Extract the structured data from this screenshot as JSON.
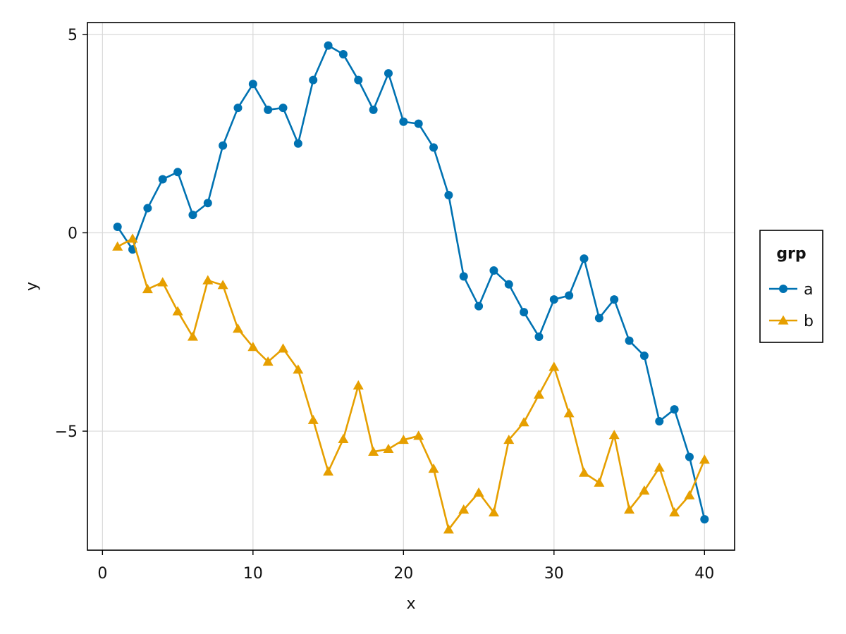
{
  "chart_data": {
    "type": "line",
    "xlabel": "x",
    "ylabel": "y",
    "xlim": [
      -1,
      42
    ],
    "ylim": [
      -8.0,
      5.3
    ],
    "xticks": [
      0,
      10,
      20,
      30,
      40
    ],
    "yticks": [
      5,
      0,
      -5
    ],
    "ytick_labels": [
      "5",
      "0",
      "−5"
    ],
    "grid": true,
    "legend": {
      "title": "grp",
      "placement": "right"
    },
    "series": [
      {
        "name": "a",
        "color": "#0072b2",
        "marker": "circle",
        "x": [
          1,
          2,
          3,
          4,
          5,
          6,
          7,
          8,
          9,
          10,
          11,
          12,
          13,
          14,
          15,
          16,
          17,
          18,
          19,
          20,
          21,
          22,
          23,
          24,
          25,
          26,
          27,
          28,
          29,
          30,
          31,
          32,
          33,
          34,
          35,
          36,
          37,
          38,
          39,
          40
        ],
        "values": [
          0.15,
          -0.42,
          0.62,
          1.35,
          1.53,
          0.45,
          0.75,
          2.2,
          3.15,
          3.75,
          3.1,
          3.15,
          2.25,
          3.85,
          4.72,
          4.5,
          3.85,
          3.1,
          4.02,
          2.8,
          2.75,
          2.15,
          0.95,
          -1.1,
          -1.85,
          -0.95,
          -1.3,
          -2.0,
          -2.62,
          -1.68,
          -1.58,
          -0.65,
          -2.15,
          -1.68,
          -2.72,
          -3.1,
          -4.75,
          -4.45,
          -5.65,
          -7.22
        ]
      },
      {
        "name": "b",
        "color": "#e69f00",
        "marker": "triangle",
        "x": [
          1,
          2,
          3,
          4,
          5,
          6,
          7,
          8,
          9,
          10,
          11,
          12,
          13,
          14,
          15,
          16,
          17,
          18,
          19,
          20,
          21,
          22,
          23,
          24,
          25,
          26,
          27,
          28,
          29,
          30,
          31,
          32,
          33,
          34,
          35,
          36,
          37,
          38,
          39,
          40
        ],
        "values": [
          -0.35,
          -0.15,
          -1.42,
          -1.25,
          -1.98,
          -2.62,
          -1.2,
          -1.32,
          -2.42,
          -2.88,
          -3.25,
          -2.92,
          -3.45,
          -4.72,
          -6.02,
          -5.2,
          -3.85,
          -5.52,
          -5.45,
          -5.22,
          -5.12,
          -5.95,
          -7.48,
          -6.98,
          -6.55,
          -7.05,
          -5.22,
          -4.78,
          -4.08,
          -3.38,
          -4.55,
          -6.05,
          -6.3,
          -5.1,
          -6.98,
          -6.5,
          -5.92,
          -7.05,
          -6.62,
          -5.72
        ]
      }
    ]
  }
}
